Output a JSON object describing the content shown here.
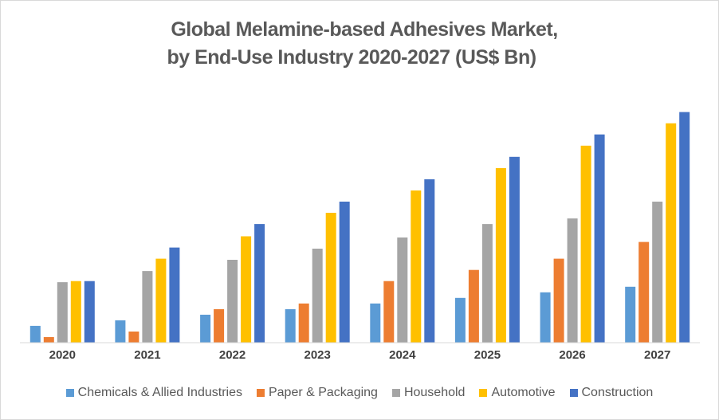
{
  "chart_data": {
    "type": "bar",
    "title": "Global Melamine-based Adhesives Market,",
    "subtitle": "by End-Use Industry 2020-2027 (US$ Bn)",
    "xlabel": "",
    "ylabel": "",
    "ylim": [
      0,
      21
    ],
    "grid": false,
    "legend_position": "bottom",
    "note": "No y-axis shown; values are relative estimates read from bar heights",
    "categories": [
      "2020",
      "2021",
      "2022",
      "2023",
      "2024",
      "2025",
      "2026",
      "2027"
    ],
    "series": [
      {
        "name": "Chemicals & Allied Industries",
        "color": "#5B9BD5",
        "values": [
          1.5,
          2.0,
          2.5,
          3.0,
          3.5,
          4.0,
          4.5,
          5.0
        ]
      },
      {
        "name": "Paper & Packaging",
        "color": "#ED7D31",
        "values": [
          0.5,
          1.0,
          3.0,
          3.5,
          5.5,
          6.5,
          7.5,
          9.0
        ]
      },
      {
        "name": "Household",
        "color": "#A5A5A5",
        "values": [
          5.4,
          6.4,
          7.4,
          8.4,
          9.4,
          10.6,
          11.1,
          12.6
        ]
      },
      {
        "name": "Automotive",
        "color": "#FFC000",
        "values": [
          5.5,
          7.5,
          9.5,
          11.6,
          13.6,
          15.6,
          17.6,
          19.6
        ]
      },
      {
        "name": "Construction",
        "color": "#4472C4",
        "values": [
          5.5,
          8.5,
          10.6,
          12.6,
          14.6,
          16.6,
          18.6,
          20.6
        ]
      }
    ]
  }
}
